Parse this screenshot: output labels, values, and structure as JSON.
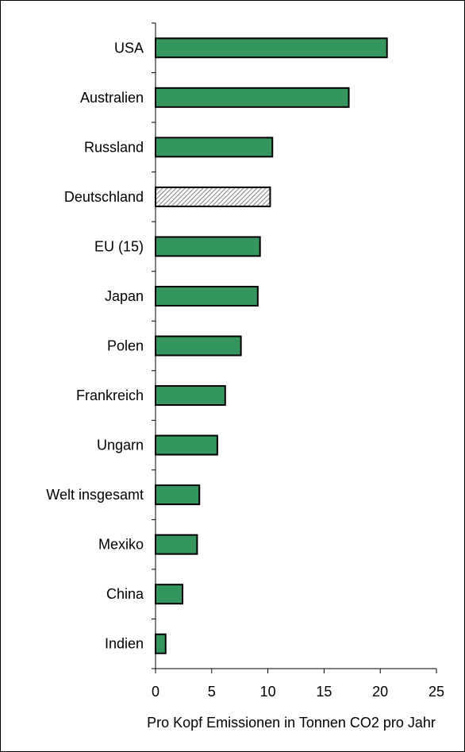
{
  "chart_data": {
    "type": "bar",
    "orientation": "horizontal",
    "categories": [
      "USA",
      "Australien",
      "Russland",
      "Deutschland",
      "EU (15)",
      "Japan",
      "Polen",
      "Frankreich",
      "Ungarn",
      "Welt insgesamt",
      "Mexiko",
      "China",
      "Indien"
    ],
    "values": [
      20.6,
      17.2,
      10.4,
      10.2,
      9.3,
      9.1,
      7.6,
      6.2,
      5.5,
      3.9,
      3.7,
      2.4,
      0.9
    ],
    "xlabel": "Pro Kopf Emissionen in Tonnen CO2 pro Jahr",
    "xlim": [
      0,
      25
    ],
    "xticks": [
      0,
      5,
      10,
      15,
      20,
      25
    ],
    "bar_color": "#35955f",
    "highlight": {
      "category": "Deutschland",
      "fill": "hatched",
      "color": "#808080"
    },
    "grid": false,
    "legend": "none"
  }
}
